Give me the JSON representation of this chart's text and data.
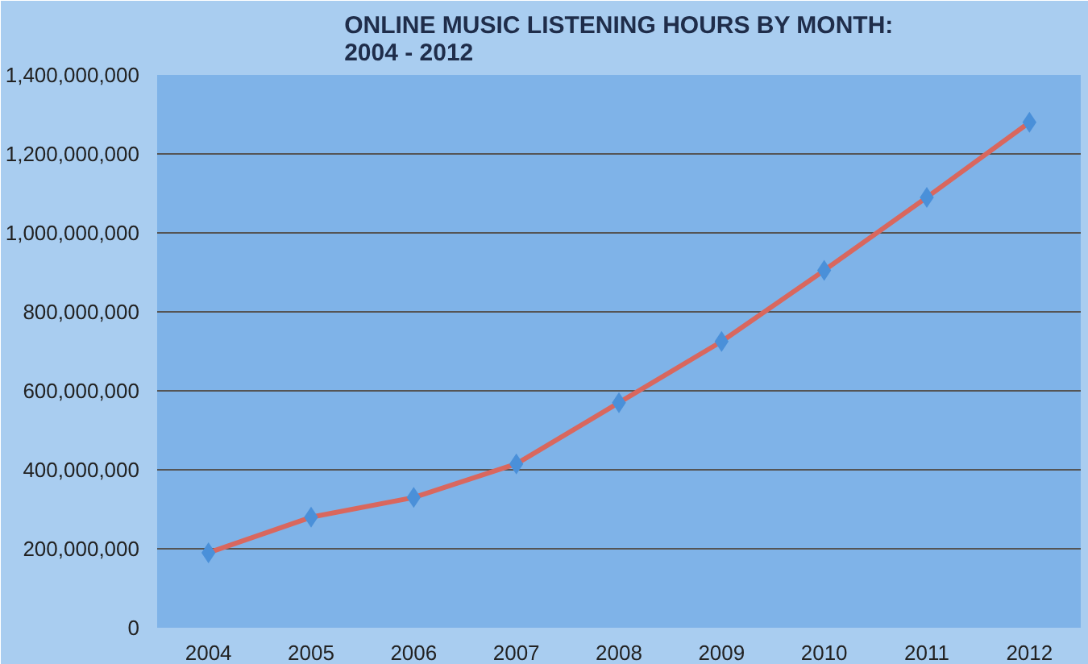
{
  "chart_data": {
    "type": "line",
    "title": "ONLINE MUSIC LISTENING HOURS BY MONTH:\n2004 - 2012",
    "categories": [
      "2004",
      "2005",
      "2006",
      "2007",
      "2008",
      "2009",
      "2010",
      "2011",
      "2012"
    ],
    "series": [
      {
        "color": "#d9675e",
        "values": [
          190000000,
          280000000,
          330000000,
          415000000,
          570000000,
          725000000,
          905000000,
          1090000000,
          1280000000
        ]
      }
    ],
    "ylim": [
      0,
      1400000000
    ],
    "yticks": [
      {
        "value": 0,
        "label": "0"
      },
      {
        "value": 200000000,
        "label": "200,000,000"
      },
      {
        "value": 400000000,
        "label": "400,000,000"
      },
      {
        "value": 600000000,
        "label": "600,000,000"
      },
      {
        "value": 800000000,
        "label": "800,000,000"
      },
      {
        "value": 1000000000,
        "label": "1,000,000,000"
      },
      {
        "value": 1200000000,
        "label": "1,200,000,000"
      },
      {
        "value": 1400000000,
        "label": "1,400,000,000"
      }
    ],
    "grid": "y",
    "marker": "diamond",
    "line_style": "solid"
  }
}
